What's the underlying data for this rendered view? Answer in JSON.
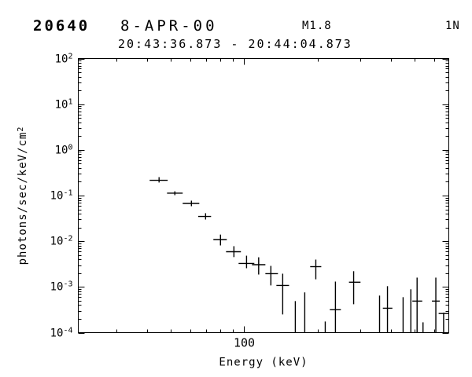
{
  "header": {
    "flare_number": "20640",
    "date": "8-APR-00",
    "goes_class": "M1.8",
    "optical_class": "1N",
    "time_interval": "20:43:36.873 - 20:44:04.873"
  },
  "chart_data": {
    "type": "scatter",
    "title": "",
    "xlabel": "Energy (keV)",
    "ylabel": "photons/sec/keV/cm^2",
    "xscale": "log",
    "yscale": "log",
    "xlim": [
      20.9,
      690
    ],
    "ylim": [
      0.0001,
      100
    ],
    "grid": false,
    "legend": "none",
    "marker": "cross-with-error-bars",
    "color": "#000000",
    "x_major_ticks": [
      100
    ],
    "x_major_tick_labels": [
      "100"
    ],
    "x_minor_ticks": [
      30,
      40,
      50,
      60,
      70,
      80,
      90,
      200,
      300,
      400,
      500,
      600
    ],
    "y_major_tick_exponents": [
      2,
      1,
      0,
      -1,
      -2,
      -3,
      -4
    ],
    "points": [
      {
        "e": 44.8,
        "e_lo": 41.0,
        "e_hi": 48.6,
        "flux": 0.216,
        "flux_hi": 0.253,
        "flux_lo": 0.193
      },
      {
        "e": 52.0,
        "e_lo": 48.3,
        "e_hi": 56.0,
        "flux": 0.113,
        "flux_hi": 0.124,
        "flux_lo": 0.102
      },
      {
        "e": 60.8,
        "e_lo": 56.0,
        "e_hi": 65.5,
        "flux": 0.0673,
        "flux_hi": 0.0774,
        "flux_lo": 0.0585
      },
      {
        "e": 69.5,
        "e_lo": 64.8,
        "e_hi": 73.2,
        "flux": 0.035,
        "flux_hi": 0.0411,
        "flux_lo": 0.0299
      },
      {
        "e": 80.0,
        "e_lo": 74.8,
        "e_hi": 84.9,
        "flux": 0.0109,
        "flux_hi": 0.014,
        "flux_lo": 0.0081
      },
      {
        "e": 90.8,
        "e_lo": 84.3,
        "e_hi": 97.0,
        "flux": 0.0059,
        "flux_hi": 0.0078,
        "flux_lo": 0.0045
      },
      {
        "e": 102.3,
        "e_lo": 94.9,
        "e_hi": 110.1,
        "flux": 0.00326,
        "flux_hi": 0.00483,
        "flux_lo": 0.00257
      },
      {
        "e": 114.7,
        "e_lo": 107.7,
        "e_hi": 122.2,
        "flux": 0.00307,
        "flux_hi": 0.00446,
        "flux_lo": 0.00187
      },
      {
        "e": 128.7,
        "e_lo": 122.2,
        "e_hi": 137.6,
        "flux": 0.00195,
        "flux_hi": 0.00289,
        "flux_lo": 0.00108
      },
      {
        "e": 143.9,
        "e_lo": 135.6,
        "e_hi": 152.8,
        "flux": 0.00108,
        "flux_hi": 0.00195,
        "flux_lo": 0.00025
      },
      {
        "e": 162.1,
        "e_lo": null,
        "e_hi": null,
        "flux": null,
        "flux_hi": 0.00049,
        "flux_lo": 0.0001
      },
      {
        "e": 177.2,
        "e_lo": null,
        "e_hi": null,
        "flux": null,
        "flux_hi": 0.00076,
        "flux_lo": 0.0001
      },
      {
        "e": 196.7,
        "e_lo": 186.5,
        "e_hi": 207.1,
        "flux": 0.00278,
        "flux_hi": 0.00397,
        "flux_lo": 0.00147
      },
      {
        "e": 215.0,
        "e_lo": null,
        "e_hi": null,
        "flux": null,
        "flux_hi": 0.000175,
        "flux_lo": 0.0001
      },
      {
        "e": 236.7,
        "e_lo": 224.5,
        "e_hi": 249.2,
        "flux": 0.000317,
        "flux_hi": 0.00131,
        "flux_lo": 0.0001
      },
      {
        "e": 281.1,
        "e_lo": 269.0,
        "e_hi": 299.9,
        "flux": 0.00127,
        "flux_hi": 0.00221,
        "flux_lo": 0.000418
      },
      {
        "e": 359.0,
        "e_lo": null,
        "e_hi": null,
        "flux": null,
        "flux_hi": 0.000647,
        "flux_lo": 0.0001
      },
      {
        "e": 386.8,
        "e_lo": 370.3,
        "e_hi": 405.2,
        "flux": 0.000342,
        "flux_hi": 0.00104,
        "flux_lo": 0.0001
      },
      {
        "e": 448.3,
        "e_lo": null,
        "e_hi": null,
        "flux": null,
        "flux_hi": 0.000597,
        "flux_lo": 0.0001
      },
      {
        "e": 482.3,
        "e_lo": null,
        "e_hi": null,
        "flux": null,
        "flux_hi": 0.000889,
        "flux_lo": 0.0001
      },
      {
        "e": 511.6,
        "e_lo": 489.2,
        "e_hi": 537.0,
        "flux": 0.00049,
        "flux_hi": 0.0016,
        "flux_lo": 0.0001
      },
      {
        "e": 541.0,
        "e_lo": null,
        "e_hi": null,
        "flux": null,
        "flux_hi": 0.000168,
        "flux_lo": 0.0001
      },
      {
        "e": 610.6,
        "e_lo": 588.4,
        "e_hi": 633.6,
        "flux": 0.00049,
        "flux_hi": 0.0016,
        "flux_lo": 0.0001
      },
      {
        "e": 657.1,
        "e_lo": 627.0,
        "e_hi": 700.0,
        "flux": 0.000262,
        "flux_hi": 0.000273,
        "flux_lo": 0.0001
      }
    ]
  }
}
